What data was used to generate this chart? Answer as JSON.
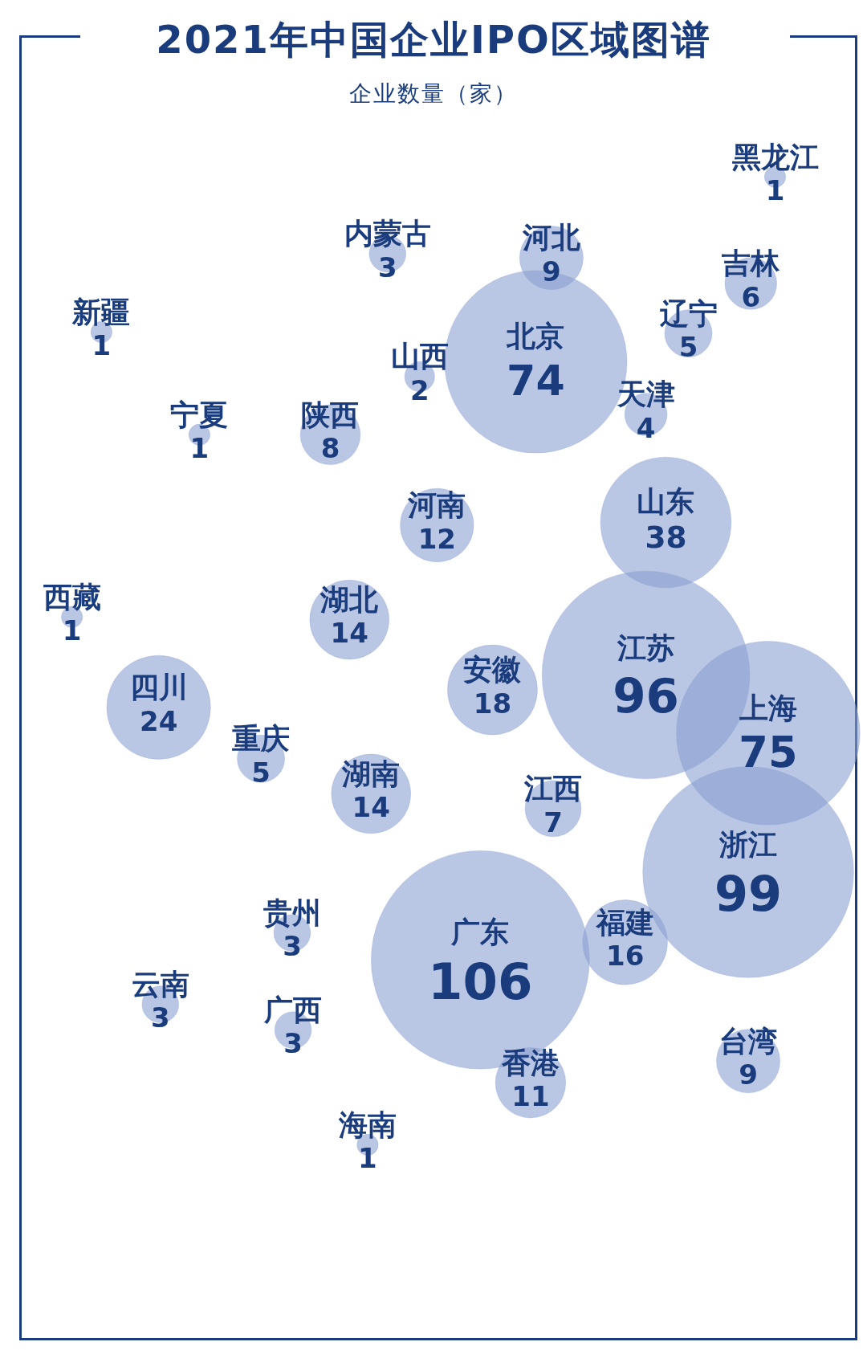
{
  "chart_data": {
    "type": "other",
    "title": "2021年中国企业IPO区域图谱",
    "subtitle": "企业数量（家）",
    "categories": [
      "黑龙江",
      "内蒙古",
      "河北",
      "吉林",
      "新疆",
      "北京",
      "辽宁",
      "山西",
      "天津",
      "宁夏",
      "陕西",
      "河南",
      "山东",
      "西藏",
      "湖北",
      "江苏",
      "安徽",
      "四川",
      "上海",
      "重庆",
      "湖南",
      "江西",
      "浙江",
      "贵州",
      "福建",
      "广东",
      "云南",
      "广西",
      "台湾",
      "香港",
      "海南"
    ],
    "values": [
      1,
      3,
      9,
      6,
      1,
      74,
      5,
      2,
      4,
      1,
      8,
      12,
      38,
      1,
      14,
      96,
      18,
      24,
      75,
      5,
      14,
      7,
      99,
      3,
      16,
      106,
      3,
      3,
      9,
      11,
      1
    ],
    "color": "#8aa0d2",
    "data_labels": true
  }
}
